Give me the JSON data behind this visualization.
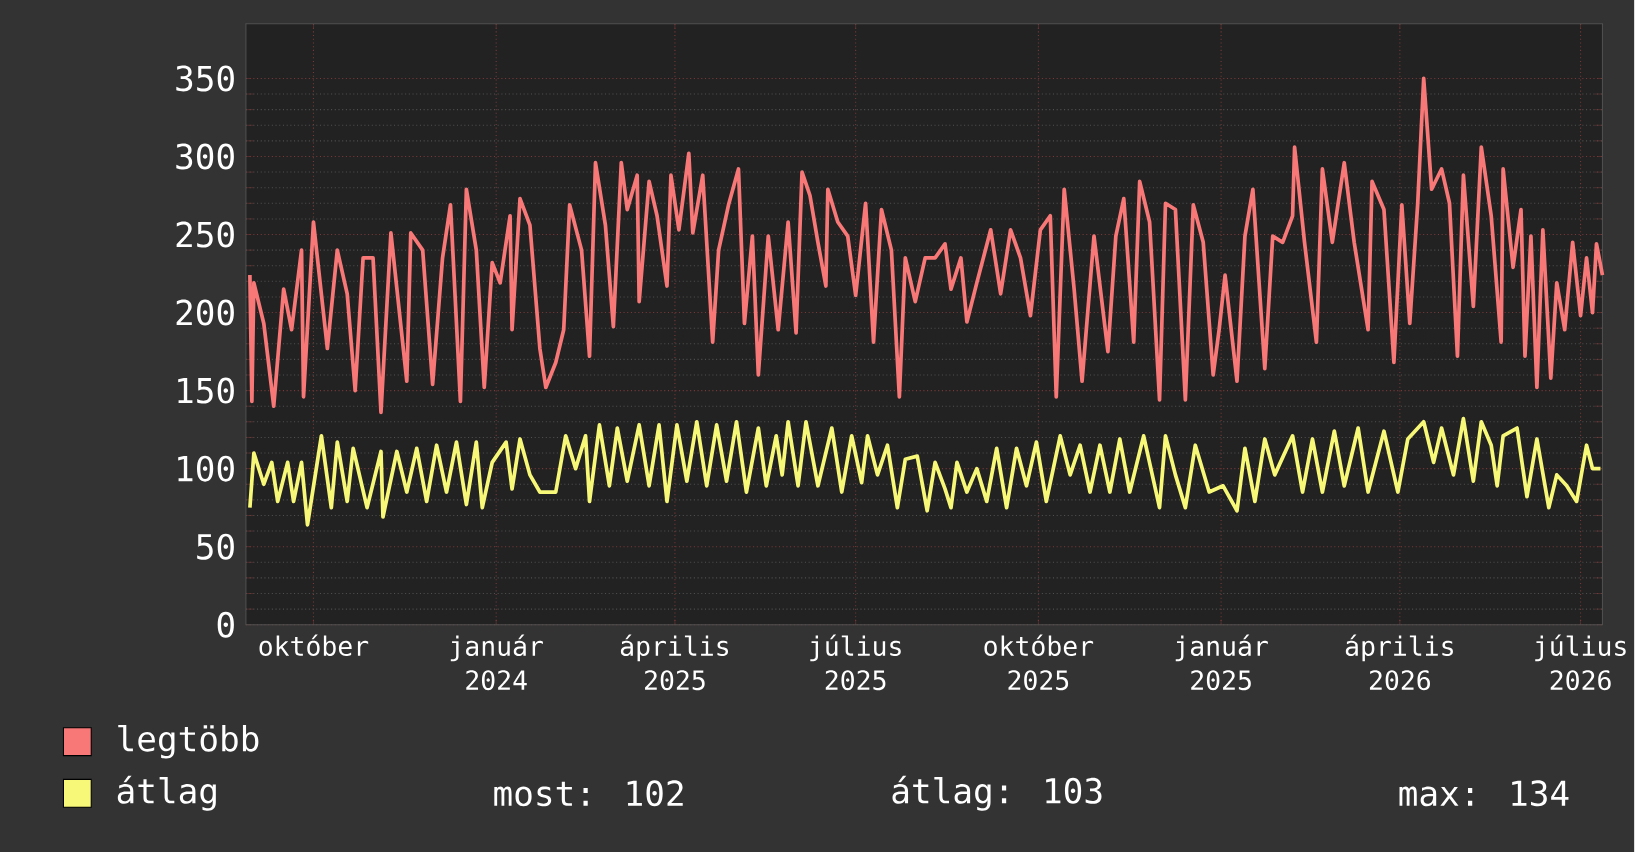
{
  "chart_data": {
    "type": "line",
    "xlim": [
      "2024-08-28",
      "2026-07-12"
    ],
    "ylim": [
      0,
      385
    ],
    "xticks": [
      {
        "value": "2024-10-01",
        "label": "október"
      },
      {
        "value": "2025-01-01",
        "label": "január"
      },
      {
        "value": "2025-04-01",
        "label": "április"
      },
      {
        "value": "2025-07-01",
        "label": "július"
      },
      {
        "value": "2025-10-01",
        "label": "október"
      },
      {
        "value": "2026-01-01",
        "label": "január"
      },
      {
        "value": "2026-04-01",
        "label": "április"
      },
      {
        "value": "2026-07-01",
        "label": "július"
      }
    ],
    "yticks": [
      0,
      50,
      100,
      150,
      200,
      250,
      300,
      350
    ],
    "grid": true,
    "legend": "bottom",
    "annotations": [
      "2024",
      "2025",
      "2025",
      "2025",
      "2025",
      "2026",
      "2026",
      "most: 102",
      "átlag: 103",
      "max: 134"
    ],
    "series": [
      {
        "name": "legtöbb",
        "color": "#f87878",
        "x": [
          "2024-08-30",
          "2024-08-31",
          "2024-09-01",
          "2024-09-06",
          "2024-09-11",
          "2024-09-16",
          "2024-09-20",
          "2024-09-25",
          "2024-09-26",
          "2024-10-01",
          "2024-10-08",
          "2024-10-13",
          "2024-10-18",
          "2024-10-22",
          "2024-10-26",
          "2024-10-31",
          "2024-11-04",
          "2024-11-09",
          "2024-11-17",
          "2024-11-19",
          "2024-11-25",
          "2024-11-30",
          "2024-12-05",
          "2024-12-09",
          "2024-12-14",
          "2024-12-17",
          "2024-12-22",
          "2024-12-26",
          "2024-12-30",
          "2025-01-03",
          "2025-01-08",
          "2025-01-09",
          "2025-01-13",
          "2025-01-18",
          "2025-01-23",
          "2025-01-26",
          "2025-01-31",
          "2025-02-04",
          "2025-02-07",
          "2025-02-13",
          "2025-02-17",
          "2025-02-20",
          "2025-02-25",
          "2025-03-01",
          "2025-03-05",
          "2025-03-08",
          "2025-03-13",
          "2025-03-14",
          "2025-03-19",
          "2025-03-23",
          "2025-03-28",
          "2025-03-30",
          "2025-04-03",
          "2025-04-08",
          "2025-04-10",
          "2025-04-15",
          "2025-04-20",
          "2025-04-23",
          "2025-04-28",
          "2025-05-03",
          "2025-05-06",
          "2025-05-10",
          "2025-05-13",
          "2025-05-18",
          "2025-05-23",
          "2025-05-28",
          "2025-06-01",
          "2025-06-04",
          "2025-06-08",
          "2025-06-12",
          "2025-06-16",
          "2025-06-17",
          "2025-06-22",
          "2025-06-27",
          "2025-07-01",
          "2025-07-06",
          "2025-07-10",
          "2025-07-14",
          "2025-07-19",
          "2025-07-23",
          "2025-07-26",
          "2025-07-31",
          "2025-08-05",
          "2025-08-10",
          "2025-08-15",
          "2025-08-18",
          "2025-08-23",
          "2025-08-26",
          "2025-08-31",
          "2025-09-07",
          "2025-09-12",
          "2025-09-17",
          "2025-09-22",
          "2025-09-27",
          "2025-10-02",
          "2025-10-07",
          "2025-10-10",
          "2025-10-14",
          "2025-10-19",
          "2025-10-23",
          "2025-10-29",
          "2025-11-05",
          "2025-11-09",
          "2025-11-13",
          "2025-11-18",
          "2025-11-21",
          "2025-11-26",
          "2025-12-01",
          "2025-12-04",
          "2025-12-09",
          "2025-12-14",
          "2025-12-18",
          "2025-12-23",
          "2025-12-28",
          "2025-12-31",
          "2026-01-03",
          "2026-01-09",
          "2026-01-13",
          "2026-01-17",
          "2026-01-23",
          "2026-01-27",
          "2026-02-01",
          "2026-02-06",
          "2026-02-07",
          "2026-02-12",
          "2026-02-18",
          "2026-02-21",
          "2026-02-26",
          "2026-03-04",
          "2026-03-09",
          "2026-03-16",
          "2026-03-18",
          "2026-03-24",
          "2026-03-29",
          "2026-04-02",
          "2026-04-06",
          "2026-04-10",
          "2026-04-13",
          "2026-04-17",
          "2026-04-22",
          "2026-04-26",
          "2026-04-30",
          "2026-05-03",
          "2026-05-08",
          "2026-05-12",
          "2026-05-17",
          "2026-05-22",
          "2026-05-23",
          "2026-05-28",
          "2026-06-01",
          "2026-06-03",
          "2026-06-06",
          "2026-06-09",
          "2026-06-12",
          "2026-06-16",
          "2026-06-19",
          "2026-06-23",
          "2026-06-27",
          "2026-07-01",
          "2026-07-04",
          "2026-07-07",
          "2026-07-09",
          "2026-07-12"
        ],
        "values": [
          224,
          143,
          219,
          193,
          140,
          215,
          189,
          240,
          146,
          258,
          177,
          240,
          212,
          150,
          235,
          235,
          136,
          251,
          156,
          251,
          240,
          154,
          235,
          269,
          143,
          279,
          240,
          152,
          232,
          219,
          262,
          189,
          273,
          256,
          177,
          152,
          168,
          189,
          269,
          240,
          172,
          296,
          256,
          191,
          296,
          266,
          288,
          207,
          284,
          262,
          217,
          288,
          253,
          302,
          251,
          288,
          181,
          240,
          269,
          292,
          193,
          249,
          160,
          249,
          189,
          258,
          187,
          290,
          275,
          245,
          217,
          279,
          258,
          249,
          211,
          270,
          181,
          266,
          240,
          146,
          235,
          207,
          235,
          235,
          244,
          215,
          235,
          194,
          219,
          253,
          212,
          253,
          235,
          198,
          253,
          262,
          146,
          279,
          215,
          156,
          249,
          175,
          249,
          273,
          181,
          284,
          258,
          144,
          270,
          266,
          144,
          269,
          245,
          160,
          189,
          224,
          156,
          249,
          279,
          164,
          249,
          245,
          262,
          306,
          245,
          181,
          292,
          245,
          296,
          245,
          189,
          284,
          266,
          168,
          269,
          193,
          270,
          350,
          279,
          292,
          270,
          172,
          288,
          204,
          306,
          262,
          181,
          292,
          229,
          266,
          172,
          249,
          152,
          253,
          158,
          219,
          189,
          245,
          198,
          235,
          200,
          244,
          224
        ]
      },
      {
        "name": "átlag",
        "color": "#f8f878",
        "x": [
          "2024-08-30",
          "2024-09-01",
          "2024-09-06",
          "2024-09-10",
          "2024-09-13",
          "2024-09-18",
          "2024-09-21",
          "2024-09-25",
          "2024-09-28",
          "2024-10-05",
          "2024-10-10",
          "2024-10-13",
          "2024-10-18",
          "2024-10-21",
          "2024-10-28",
          "2024-11-04",
          "2024-11-05",
          "2024-11-12",
          "2024-11-17",
          "2024-11-22",
          "2024-11-27",
          "2024-12-02",
          "2024-12-07",
          "2024-12-12",
          "2024-12-17",
          "2024-12-22",
          "2024-12-25",
          "2024-12-30",
          "2025-01-06",
          "2025-01-09",
          "2025-01-13",
          "2025-01-18",
          "2025-01-23",
          "2025-01-31",
          "2025-02-05",
          "2025-02-10",
          "2025-02-15",
          "2025-02-17",
          "2025-02-22",
          "2025-02-27",
          "2025-03-03",
          "2025-03-08",
          "2025-03-14",
          "2025-03-19",
          "2025-03-24",
          "2025-03-28",
          "2025-04-02",
          "2025-04-07",
          "2025-04-12",
          "2025-04-17",
          "2025-04-22",
          "2025-04-27",
          "2025-05-02",
          "2025-05-07",
          "2025-05-13",
          "2025-05-17",
          "2025-05-22",
          "2025-05-25",
          "2025-05-28",
          "2025-06-02",
          "2025-06-06",
          "2025-06-12",
          "2025-06-19",
          "2025-06-24",
          "2025-06-29",
          "2025-07-04",
          "2025-07-07",
          "2025-07-12",
          "2025-07-17",
          "2025-07-22",
          "2025-07-26",
          "2025-08-01",
          "2025-08-06",
          "2025-08-10",
          "2025-08-15",
          "2025-08-18",
          "2025-08-21",
          "2025-08-26",
          "2025-08-31",
          "2025-09-05",
          "2025-09-10",
          "2025-09-15",
          "2025-09-20",
          "2025-09-25",
          "2025-09-30",
          "2025-10-05",
          "2025-10-12",
          "2025-10-17",
          "2025-10-22",
          "2025-10-27",
          "2025-11-01",
          "2025-11-06",
          "2025-11-11",
          "2025-11-16",
          "2025-11-23",
          "2025-12-01",
          "2025-12-04",
          "2025-12-09",
          "2025-12-14",
          "2025-12-19",
          "2025-12-26",
          "2026-01-02",
          "2026-01-09",
          "2026-01-13",
          "2026-01-18",
          "2026-01-23",
          "2026-01-28",
          "2026-02-06",
          "2026-02-11",
          "2026-02-16",
          "2026-02-21",
          "2026-02-27",
          "2026-03-04",
          "2026-03-11",
          "2026-03-16",
          "2026-03-24",
          "2026-03-31",
          "2026-04-05",
          "2026-04-13",
          "2026-04-18",
          "2026-04-22",
          "2026-04-28",
          "2026-05-03",
          "2026-05-08",
          "2026-05-12",
          "2026-05-17",
          "2026-05-20",
          "2026-05-23",
          "2026-05-30",
          "2026-06-04",
          "2026-06-09",
          "2026-06-15",
          "2026-06-19",
          "2026-06-24",
          "2026-06-29",
          "2026-07-04",
          "2026-07-07",
          "2026-07-11"
        ],
        "values": [
          75,
          110,
          90,
          104,
          79,
          104,
          79,
          104,
          64,
          121,
          75,
          117,
          79,
          113,
          75,
          111,
          69,
          111,
          85,
          113,
          79,
          115,
          85,
          117,
          77,
          117,
          75,
          104,
          117,
          87,
          119,
          96,
          85,
          85,
          121,
          100,
          121,
          79,
          128,
          89,
          126,
          92,
          128,
          89,
          128,
          79,
          128,
          92,
          130,
          89,
          128,
          92,
          130,
          85,
          126,
          89,
          121,
          96,
          130,
          89,
          130,
          89,
          126,
          85,
          121,
          91,
          121,
          96,
          115,
          75,
          106,
          108,
          73,
          104,
          87,
          75,
          104,
          85,
          100,
          79,
          113,
          75,
          113,
          89,
          117,
          79,
          121,
          96,
          115,
          85,
          115,
          85,
          119,
          85,
          121,
          75,
          121,
          96,
          75,
          115,
          85,
          89,
          73,
          113,
          79,
          119,
          96,
          121,
          85,
          119,
          85,
          124,
          89,
          126,
          85,
          124,
          85,
          119,
          130,
          104,
          126,
          96,
          132,
          92,
          130,
          115,
          89,
          121,
          126,
          82,
          119,
          75,
          96,
          89,
          79,
          115,
          100,
          100
        ]
      }
    ]
  }
}
